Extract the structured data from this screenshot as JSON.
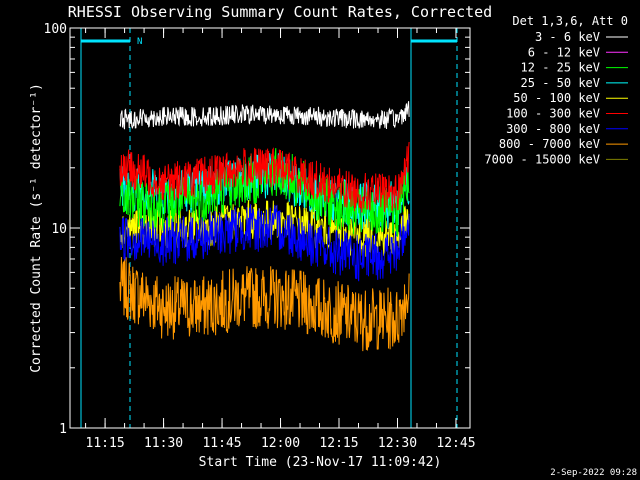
{
  "chart_data": {
    "type": "line",
    "title": "RHESSI Observing Summary Count Rates, Corrected",
    "xlabel": "Start Time (23-Nov-17 11:09:42)",
    "ylabel": "Corrected Count Rate (s⁻¹ detector⁻¹)",
    "yscale": "log",
    "ylim": [
      1,
      100
    ],
    "yticks": [
      "1",
      "10",
      "100"
    ],
    "xlim_minutes": [
      11.1,
      12.81
    ],
    "xticks": [
      "11:15",
      "11:30",
      "11:45",
      "12:00",
      "12:15",
      "12:30",
      "12:45"
    ],
    "legend_header": "Det 1,3,6, Att 0",
    "legend_position": "top-right, outside plot",
    "series": [
      {
        "name": "3 - 6 keV",
        "color": "#ffffff",
        "x": [
          "11:20",
          "11:30",
          "11:40",
          "11:50",
          "12:00",
          "12:10",
          "12:20",
          "12:30",
          "12:33"
        ],
        "values": [
          35,
          36,
          36,
          37,
          37,
          36,
          35,
          35,
          40
        ]
      },
      {
        "name": "6 - 12 keV",
        "color": "#ff33ff",
        "x": [],
        "values": []
      },
      {
        "name": "12 - 25 keV",
        "color": "#00ff00",
        "x": [
          "11:20",
          "11:30",
          "11:40",
          "11:50",
          "12:00",
          "12:10",
          "12:20",
          "12:30",
          "12:33"
        ],
        "values": [
          14,
          13,
          14,
          17,
          19,
          14,
          12,
          12,
          18
        ]
      },
      {
        "name": "25 - 50 keV",
        "color": "#00ffff",
        "x": [
          "11:20",
          "11:30",
          "11:40",
          "11:50",
          "12:00",
          "12:10",
          "12:20",
          "12:30",
          "12:33"
        ],
        "values": [
          16,
          15,
          16,
          18,
          18,
          14,
          13,
          13,
          17
        ]
      },
      {
        "name": "50 - 100 keV",
        "color": "#ffff00",
        "x": [
          "11:20",
          "11:30",
          "11:40",
          "11:50",
          "12:00",
          "12:10",
          "12:20",
          "12:30",
          "12:33"
        ],
        "values": [
          10,
          10,
          10,
          11,
          11,
          10,
          9,
          9,
          11
        ]
      },
      {
        "name": "100 - 300 keV",
        "color": "#ff0000",
        "x": [
          "11:20",
          "11:30",
          "11:40",
          "11:50",
          "12:00",
          "12:10",
          "12:20",
          "12:30",
          "12:33"
        ],
        "values": [
          20,
          17,
          18,
          20,
          20,
          17,
          15,
          15,
          22
        ]
      },
      {
        "name": "300 - 800 keV",
        "color": "#0000ff",
        "x": [
          "11:20",
          "11:30",
          "11:40",
          "11:50",
          "12:00",
          "12:10",
          "12:20",
          "12:30",
          "12:33"
        ],
        "values": [
          9,
          8.5,
          9,
          10,
          10,
          8,
          7,
          7.5,
          11
        ]
      },
      {
        "name": "800 - 7000 keV",
        "color": "#ff9900",
        "x": [
          "11:20",
          "11:30",
          "11:40",
          "11:50",
          "12:00",
          "12:10",
          "12:20",
          "12:30",
          "12:33"
        ],
        "values": [
          5,
          4,
          4,
          4.5,
          4.5,
          4,
          3.5,
          3.5,
          5
        ]
      },
      {
        "name": "7000 - 15000 keV",
        "color": "#808000",
        "x": [],
        "values": []
      }
    ],
    "annotations": [
      "N"
    ],
    "grid": false
  },
  "footer": {
    "timestamp": "2-Sep-2022 09:28"
  }
}
